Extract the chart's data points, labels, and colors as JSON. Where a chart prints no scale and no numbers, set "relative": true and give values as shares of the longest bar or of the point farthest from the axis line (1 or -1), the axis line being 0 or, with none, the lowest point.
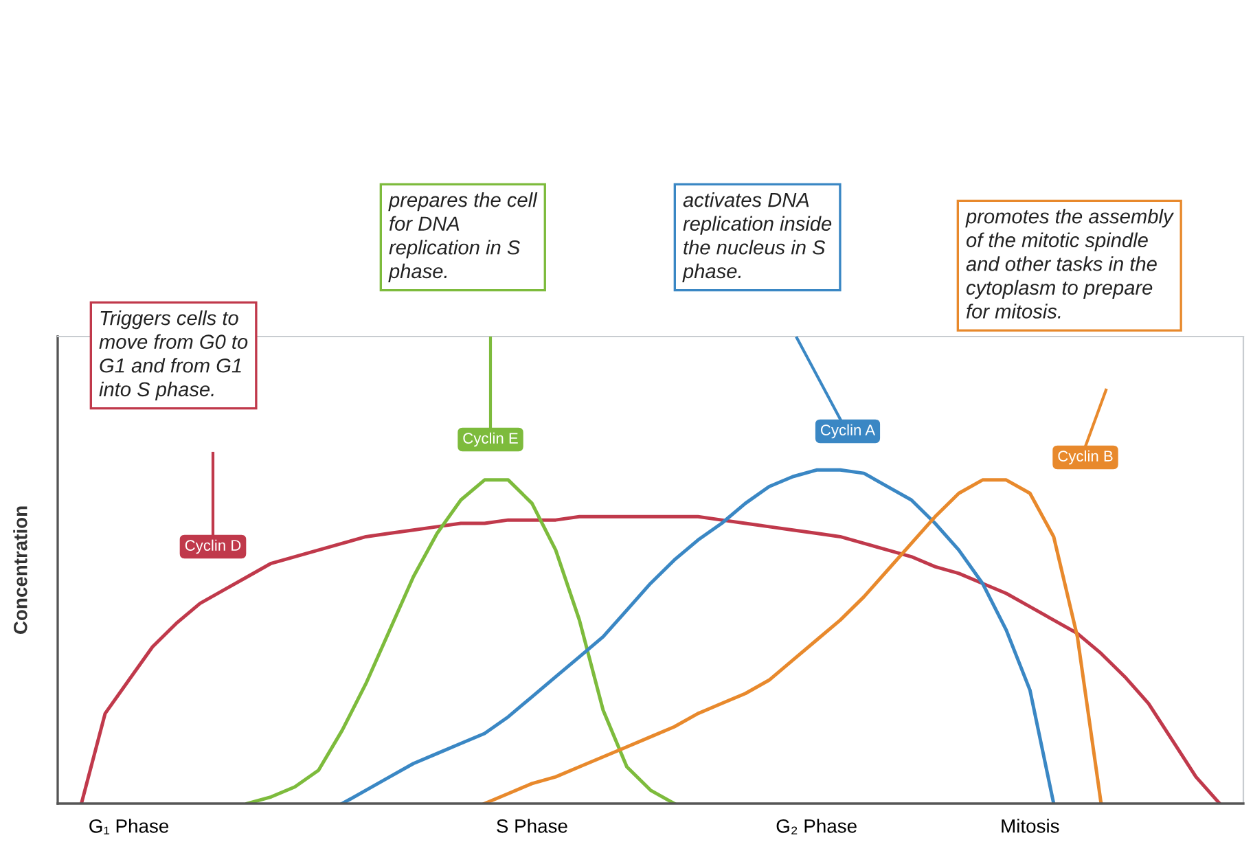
{
  "chart_data": {
    "type": "line",
    "relative": true,
    "ylabel": "Concentration",
    "categories": [
      null,
      null,
      null,
      "G₁ Phase",
      null,
      null,
      null,
      null,
      null,
      null,
      null,
      null,
      null,
      null,
      null,
      null,
      null,
      null,
      null,
      null,
      "S Phase",
      null,
      null,
      null,
      null,
      null,
      null,
      null,
      null,
      null,
      null,
      null,
      "G₂ Phase",
      null,
      null,
      null,
      null,
      null,
      null,
      null,
      null,
      "Mitosis",
      null,
      null,
      null,
      null,
      null,
      null,
      null,
      null,
      null
    ],
    "grid": false,
    "legend": false,
    "marker": "none",
    "line_style": "solid",
    "series": [
      {
        "name": "Cyclin D",
        "color": "#c0394b",
        "values": [
          null,
          0,
          0.27,
          0.37,
          0.47,
          0.54,
          0.6,
          0.64,
          0.68,
          0.72,
          0.74,
          0.76,
          0.78,
          0.8,
          0.81,
          0.82,
          0.83,
          0.84,
          0.84,
          0.85,
          0.85,
          0.85,
          0.86,
          0.86,
          0.86,
          0.86,
          0.86,
          0.86,
          0.85,
          0.84,
          0.83,
          0.82,
          0.81,
          0.8,
          0.78,
          0.76,
          0.74,
          0.71,
          0.69,
          0.66,
          0.63,
          0.59,
          0.55,
          0.51,
          0.45,
          0.38,
          0.3,
          0.19,
          0.08,
          0,
          null
        ]
      },
      {
        "name": "Cyclin E",
        "color": "#7dbb3c",
        "values": [
          null,
          null,
          null,
          null,
          null,
          null,
          null,
          null,
          0,
          0.02,
          0.05,
          0.1,
          0.22,
          0.36,
          0.52,
          0.68,
          0.81,
          0.91,
          0.97,
          0.97,
          0.9,
          0.76,
          0.55,
          0.28,
          0.11,
          0.04,
          0,
          null,
          null,
          null,
          null,
          null,
          null,
          null,
          null,
          null,
          null,
          null,
          null,
          null,
          null,
          null,
          null,
          null,
          null,
          null,
          null,
          null,
          null,
          null,
          null
        ]
      },
      {
        "name": "Cyclin A",
        "color": "#3a87c4",
        "values": [
          null,
          null,
          null,
          null,
          null,
          null,
          null,
          null,
          null,
          null,
          null,
          null,
          0,
          0.04,
          0.08,
          0.12,
          0.15,
          0.18,
          0.21,
          0.26,
          0.32,
          0.38,
          0.44,
          0.5,
          0.58,
          0.66,
          0.73,
          0.79,
          0.84,
          0.9,
          0.95,
          0.98,
          1.0,
          1.0,
          0.99,
          0.95,
          0.91,
          0.84,
          0.76,
          0.66,
          0.52,
          0.34,
          0,
          null,
          null,
          null,
          null,
          null,
          null,
          null,
          null
        ]
      },
      {
        "name": "Cyclin B",
        "color": "#e8892c",
        "values": [
          null,
          null,
          null,
          null,
          null,
          null,
          null,
          null,
          null,
          null,
          null,
          null,
          null,
          null,
          null,
          null,
          null,
          null,
          0,
          0.03,
          0.06,
          0.08,
          0.11,
          0.14,
          0.17,
          0.2,
          0.23,
          0.27,
          0.3,
          0.33,
          0.37,
          0.43,
          0.49,
          0.55,
          0.62,
          0.7,
          0.78,
          0.86,
          0.93,
          0.97,
          0.97,
          0.93,
          0.8,
          0.5,
          0,
          null,
          null,
          null,
          null,
          null,
          null
        ]
      }
    ],
    "annotations": [
      "Triggers cells to\nmove from G0 to\nG1 and from G1\ninto S phase.",
      "prepares the cell\nfor DNA\nreplication in S\nphase.",
      "activates DNA\nreplication inside\nthe nucleus in S\nphase.",
      "promotes the assembly\nof the mitotic spindle\nand other tasks in the\ncytoplasm to prepare\nfor mitosis."
    ]
  }
}
